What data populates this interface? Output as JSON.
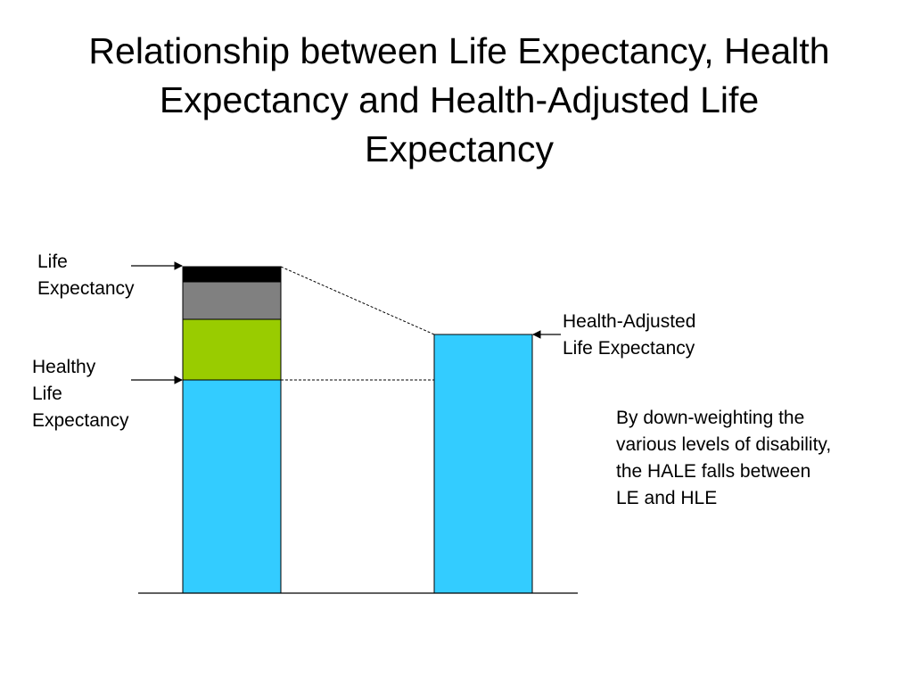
{
  "title": {
    "lines": [
      "Relationship between Life Expectancy, Health",
      "Expectancy and Health-Adjusted Life",
      "Expectancy"
    ]
  },
  "labels": {
    "life_expectancy": [
      "Life",
      "Expectancy"
    ],
    "healthy_life_expectancy": [
      "Healthy",
      "Life",
      "Expectancy"
    ],
    "hale": [
      "Health-Adjusted",
      "Life Expectancy"
    ]
  },
  "note": {
    "lines": [
      "By down-weighting the",
      "various levels of disability,",
      "the HALE falls between",
      "LE and HLE"
    ]
  },
  "colors": {
    "healthy": "#33ccff",
    "mild_disability": "#99cc00",
    "moderate_disability": "#808080",
    "severe_disability": "#000000",
    "hale": "#33ccff"
  },
  "icons": {
    "arrows": [
      "arrow-right-icon",
      "arrow-right-icon",
      "arrow-left-icon"
    ]
  }
}
